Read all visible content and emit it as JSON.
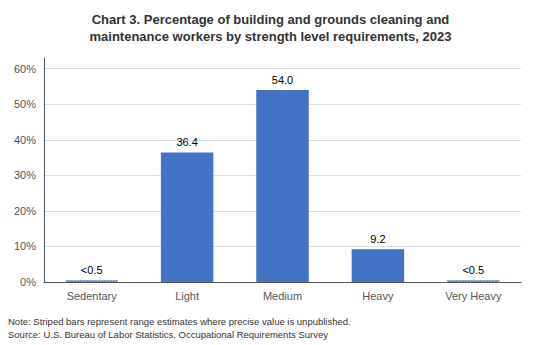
{
  "chart_data": {
    "type": "bar",
    "title": "Chart 3. Percentage of building and grounds cleaning and\nmaintenance workers by strength level requirements, 2023",
    "categories": [
      "Sedentary",
      "Light",
      "Medium",
      "Heavy",
      "Very Heavy"
    ],
    "series": [
      {
        "color": "#4472C4",
        "values": [
          null,
          36.4,
          54.0,
          9.2,
          null
        ],
        "value_labels": [
          null,
          "36.4",
          "54.0",
          "9.2",
          null
        ]
      },
      {
        "color": "#4472C4",
        "line_style": "dotted",
        "values": [
          0.5,
          null,
          null,
          null,
          0.5
        ],
        "value_labels": [
          "<0.5",
          null,
          null,
          null,
          "<0.5"
        ]
      }
    ],
    "data_labels": true,
    "ylim": [
      0,
      63
    ],
    "yticks": [
      {
        "value": 0,
        "label": "0%"
      },
      {
        "value": 10,
        "label": "10%"
      },
      {
        "value": 20,
        "label": "20%"
      },
      {
        "value": 30,
        "label": "30%"
      },
      {
        "value": 40,
        "label": "40%"
      },
      {
        "value": 50,
        "label": "50%"
      },
      {
        "value": 60,
        "label": "60%"
      }
    ],
    "grid": true,
    "annotations": [
      "Note: Striped bars represent range estimates where precise value is unpublished.",
      "Source: U.S. Bureau of Labor Statistics, Occupational Requirements Survey"
    ]
  }
}
